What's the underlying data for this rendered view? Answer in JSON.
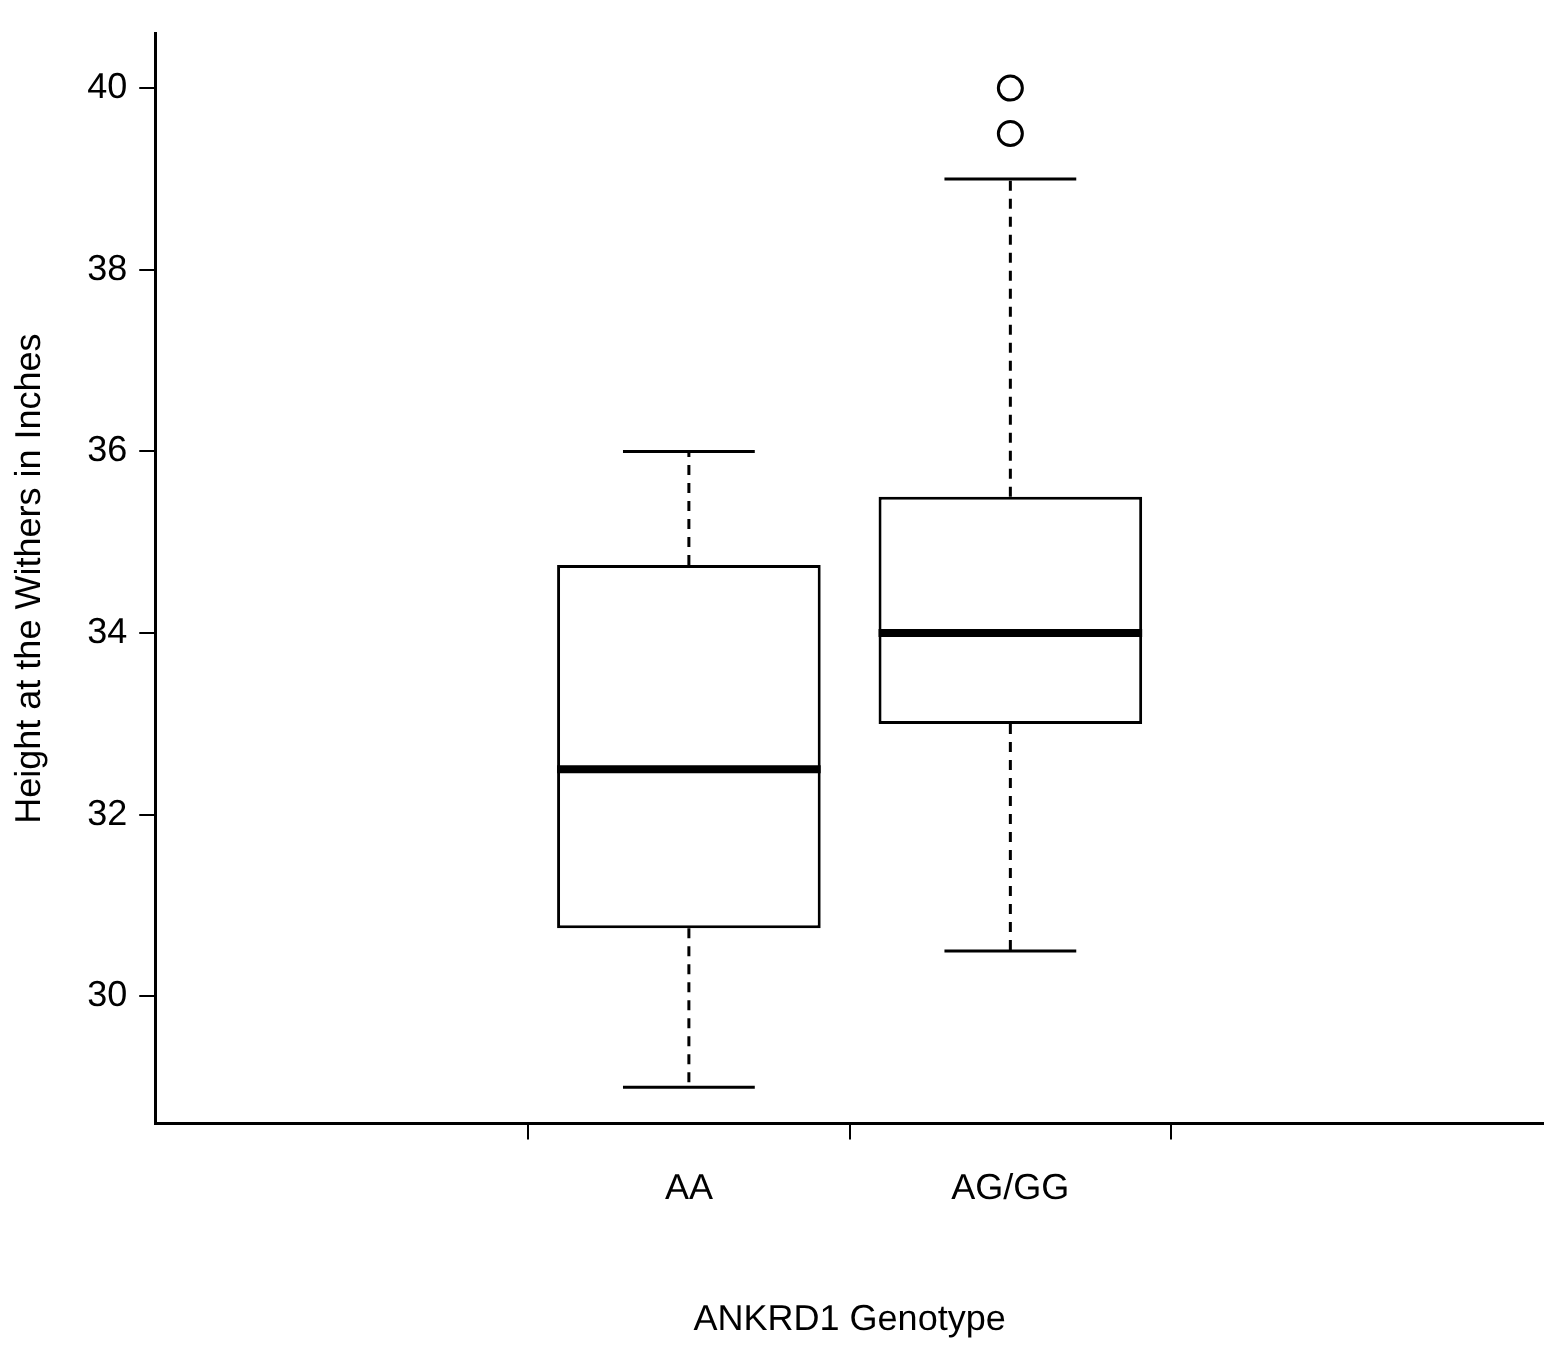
{
  "chart_data": {
    "type": "box",
    "xlabel": "ANKRD1 Genotype",
    "ylabel": "Height at the Withers in Inches",
    "categories": [
      "AA",
      "AG/GG"
    ],
    "boxes": [
      {
        "low": 29,
        "q1": 30.75,
        "median": 32.5,
        "q3": 34.75,
        "high": 36
      },
      {
        "low": 30.5,
        "q1": 33,
        "median": 34,
        "q3": 35.5,
        "high": 39,
        "outliers": [
          39.5,
          40
        ]
      }
    ],
    "ylim": [
      28.6,
      40.6
    ],
    "yticks": [
      30,
      32,
      34,
      36,
      38,
      40
    ],
    "grid": false,
    "legend": false
  }
}
